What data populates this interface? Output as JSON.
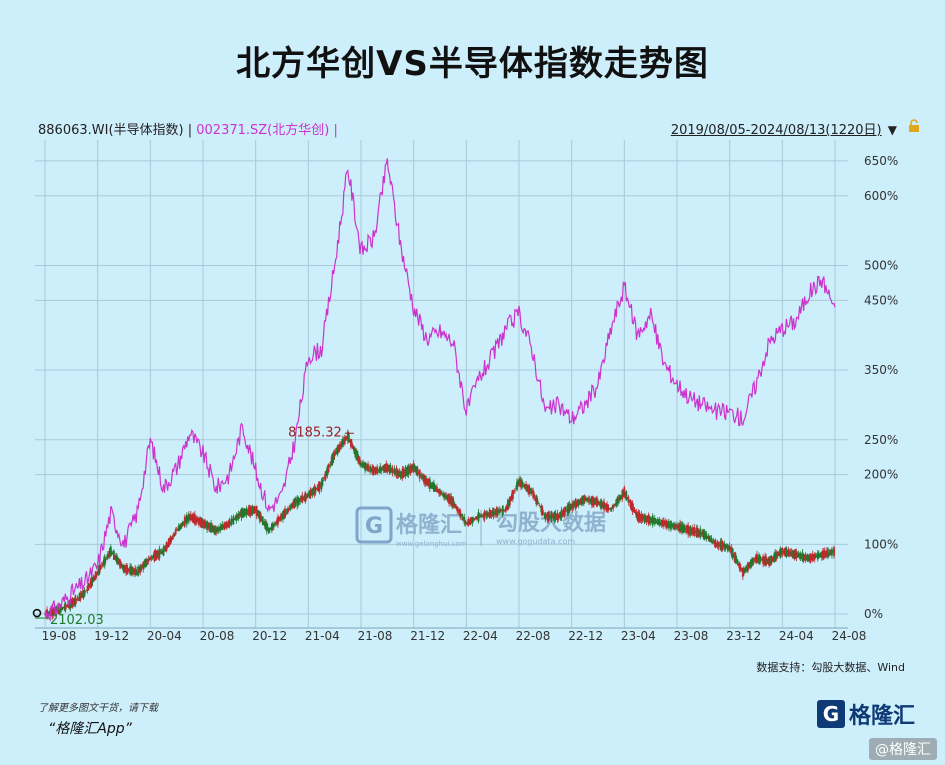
{
  "title": "北方华创VS半导体指数走势图",
  "legend": {
    "series1": "886063.WI(半导体指数) |",
    "series2": "002371.SZ(北方华创) |"
  },
  "date_range": "2019/08/05-2024/08/13(1220日)",
  "dropdown_glyph": "▼",
  "source": "数据支持：勾股大数据、Wind",
  "footer": {
    "line1": "了解更多图文干货，请下载",
    "line2": "“格隆汇App”"
  },
  "brand": {
    "logo_letter": "G",
    "name": "格隆汇"
  },
  "badge": "@格隆汇",
  "watermark": {
    "left_name": "格隆汇",
    "left_url": "www.gelonghui.com",
    "right_name": "勾股大数据",
    "right_url": "www.gogudata.com"
  },
  "colors": {
    "background": "#cdeefb",
    "series2": "#cc33cc",
    "candle_up": "#c0282d",
    "candle_down": "#1e7a2c",
    "grid": "#a9c9d8"
  },
  "chart_data": {
    "type": "line",
    "xlabel": "",
    "ylabel": "",
    "x_ticks": [
      "19-08",
      "19-12",
      "20-04",
      "20-08",
      "20-12",
      "21-04",
      "21-08",
      "21-12",
      "22-04",
      "22-08",
      "22-12",
      "23-04",
      "23-08",
      "23-12",
      "24-04",
      "24-08"
    ],
    "y_ticks": [
      "650%",
      "600%",
      "500%",
      "450%",
      "350%",
      "250%",
      "200%",
      "100%",
      "0%"
    ],
    "y_tick_values": [
      650,
      600,
      500,
      450,
      350,
      250,
      200,
      100,
      0
    ],
    "ylim": [
      -20,
      680
    ],
    "series": [
      {
        "name": "886063.WI(半导体指数)",
        "display": "candlestick",
        "x": [
          "2019-08",
          "2019-09",
          "2019-10",
          "2019-11",
          "2019-12",
          "2020-01",
          "2020-02",
          "2020-03",
          "2020-04",
          "2020-05",
          "2020-06",
          "2020-07",
          "2020-08",
          "2020-09",
          "2020-10",
          "2020-11",
          "2020-12",
          "2021-01",
          "2021-02",
          "2021-03",
          "2021-04",
          "2021-05",
          "2021-06",
          "2021-07",
          "2021-08",
          "2021-09",
          "2021-10",
          "2021-11",
          "2021-12",
          "2022-01",
          "2022-02",
          "2022-03",
          "2022-04",
          "2022-05",
          "2022-06",
          "2022-07",
          "2022-08",
          "2022-09",
          "2022-10",
          "2022-11",
          "2022-12",
          "2023-01",
          "2023-02",
          "2023-03",
          "2023-04",
          "2023-05",
          "2023-06",
          "2023-07",
          "2023-08",
          "2023-09",
          "2023-10",
          "2023-11",
          "2023-12",
          "2024-01",
          "2024-02",
          "2024-03",
          "2024-04",
          "2024-05",
          "2024-06",
          "2024-07",
          "2024-08"
        ],
        "values": [
          0,
          5,
          15,
          30,
          60,
          90,
          65,
          60,
          80,
          90,
          120,
          140,
          130,
          120,
          130,
          145,
          150,
          120,
          140,
          160,
          170,
          185,
          230,
          255,
          215,
          205,
          210,
          200,
          210,
          190,
          175,
          160,
          130,
          140,
          145,
          150,
          190,
          175,
          140,
          140,
          155,
          165,
          160,
          150,
          175,
          140,
          135,
          130,
          125,
          120,
          115,
          100,
          95,
          60,
          80,
          75,
          90,
          85,
          80,
          85,
          90
        ]
      },
      {
        "name": "002371.SZ(北方华创)",
        "display": "line",
        "x": [
          "2019-08",
          "2019-09",
          "2019-10",
          "2019-11",
          "2019-12",
          "2020-01",
          "2020-02",
          "2020-03",
          "2020-04",
          "2020-05",
          "2020-06",
          "2020-07",
          "2020-08",
          "2020-09",
          "2020-10",
          "2020-11",
          "2020-12",
          "2021-01",
          "2021-02",
          "2021-03",
          "2021-04",
          "2021-05",
          "2021-06",
          "2021-07",
          "2021-08",
          "2021-09",
          "2021-10",
          "2021-11",
          "2021-12",
          "2022-01",
          "2022-02",
          "2022-03",
          "2022-04",
          "2022-05",
          "2022-06",
          "2022-07",
          "2022-08",
          "2022-09",
          "2022-10",
          "2022-11",
          "2022-12",
          "2023-01",
          "2023-02",
          "2023-03",
          "2023-04",
          "2023-05",
          "2023-06",
          "2023-07",
          "2023-08",
          "2023-09",
          "2023-10",
          "2023-11",
          "2023-12",
          "2024-01",
          "2024-02",
          "2024-03",
          "2024-04",
          "2024-05",
          "2024-06",
          "2024-07",
          "2024-08"
        ],
        "values": [
          0,
          10,
          30,
          45,
          70,
          145,
          100,
          145,
          250,
          180,
          210,
          260,
          230,
          180,
          200,
          270,
          205,
          150,
          170,
          250,
          370,
          380,
          500,
          640,
          520,
          540,
          650,
          530,
          440,
          395,
          405,
          390,
          290,
          340,
          370,
          410,
          430,
          380,
          290,
          300,
          280,
          300,
          330,
          410,
          470,
          400,
          430,
          360,
          330,
          310,
          300,
          290,
          290,
          280,
          330,
          390,
          410,
          420,
          460,
          480,
          440
        ]
      }
    ],
    "annotations": [
      {
        "text": "8185.32",
        "note": "max",
        "x": "2021-07"
      },
      {
        "text": "2102.03",
        "note": "min",
        "x": "2019-08"
      }
    ]
  }
}
